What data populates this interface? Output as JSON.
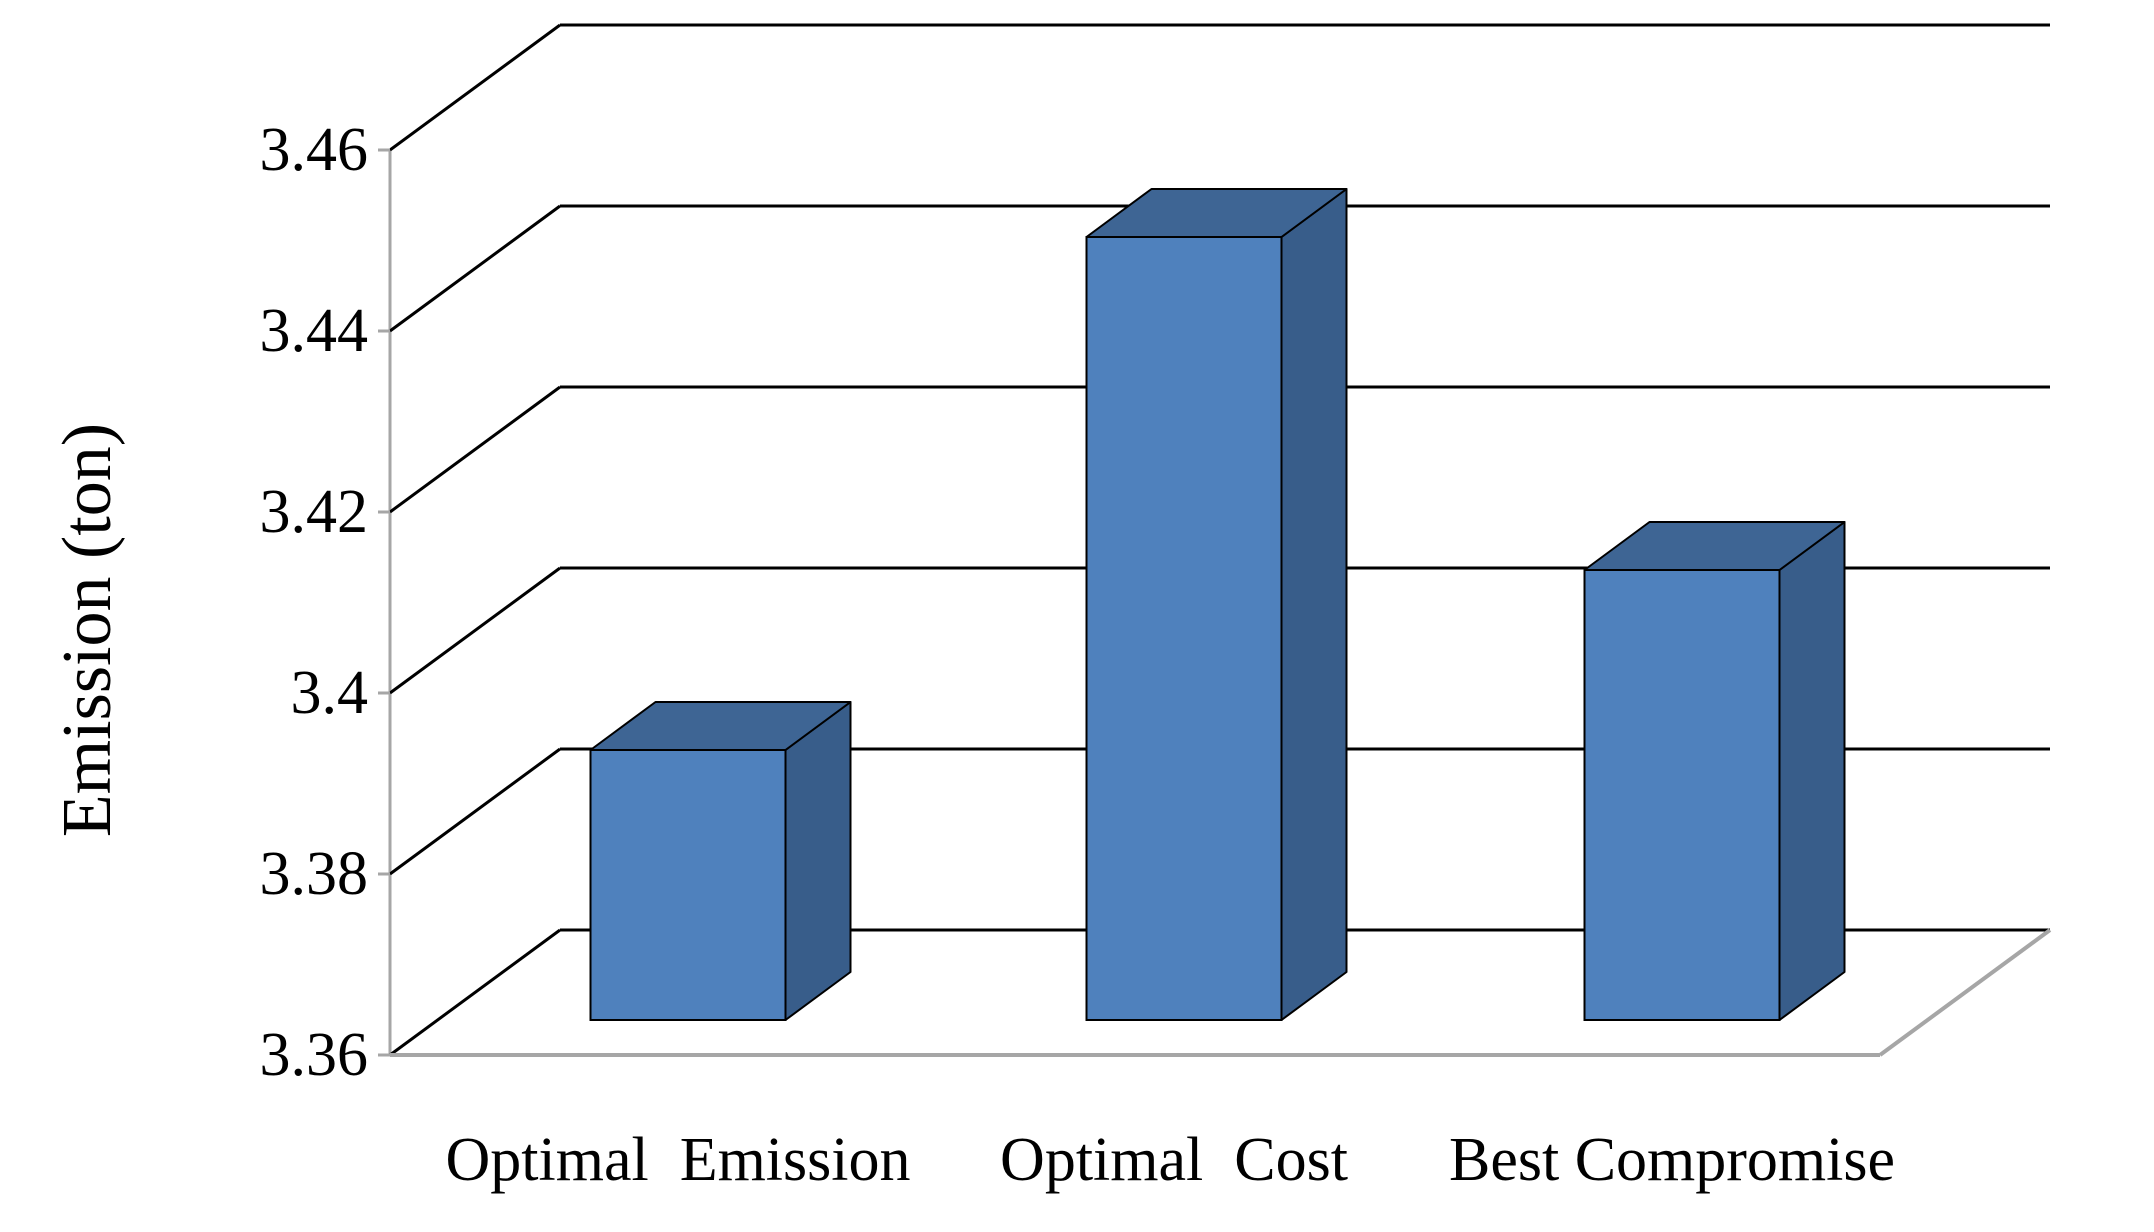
{
  "chart_data": {
    "type": "bar",
    "style": "3d-column",
    "categories": [
      "Optimal  Emission",
      "Optimal  Cost",
      "Best Compromise"
    ],
    "values": [
      3.39,
      3.447,
      3.41
    ],
    "xlabel": "",
    "ylabel": "Emission (ton)",
    "ylim": [
      3.36,
      3.46
    ],
    "yticks": [
      "3.36",
      "3.38",
      "3.4",
      "3.42",
      "3.44",
      "3.46"
    ],
    "grid": true,
    "legend": "none",
    "colors": {
      "bar_front": "#4F81BD",
      "bar_side": "#385D8A",
      "bar_top": "#3E6594",
      "gridline": "#000000",
      "floor_edge": "#A6A6A6"
    }
  }
}
